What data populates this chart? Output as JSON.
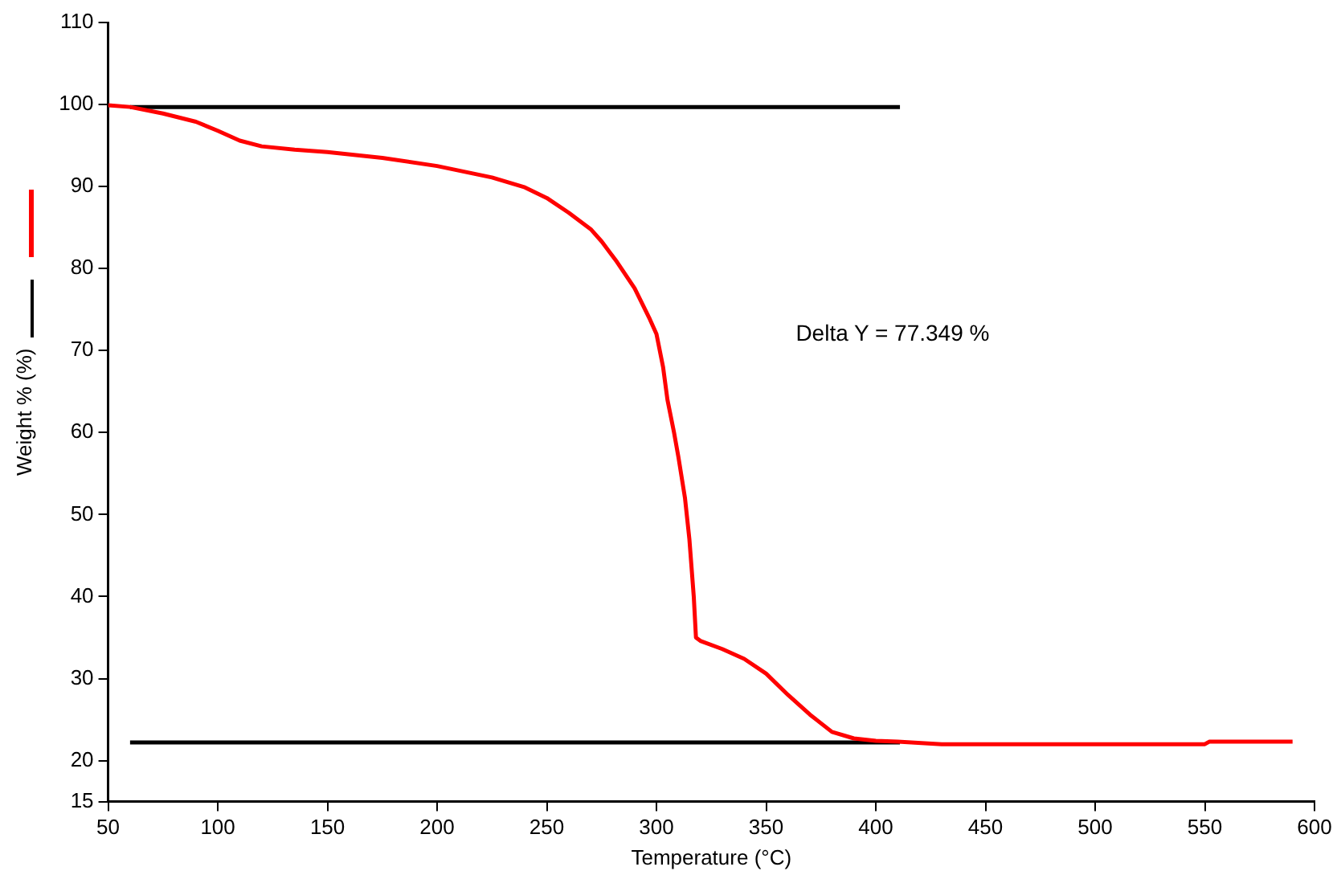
{
  "chart_data": {
    "type": "line",
    "xlabel": "Temperature (°C)",
    "ylabel": "Weight % (%)",
    "annotations": [
      "Delta Y = 77.349 %"
    ],
    "series": [
      {
        "color": "#ff0000",
        "x": [
          50,
          60,
          75,
          90,
          100,
          110,
          120,
          135,
          150,
          175,
          200,
          225,
          240,
          250,
          260,
          270,
          275,
          282,
          290,
          297,
          300,
          303,
          305,
          308,
          310,
          313,
          315,
          317,
          318,
          319,
          320,
          330,
          340,
          350,
          360,
          370,
          380,
          390,
          400,
          410,
          430,
          550,
          552,
          590
        ],
        "values": [
          99.9,
          99.7,
          98.9,
          97.9,
          96.8,
          95.6,
          94.9,
          94.5,
          94.2,
          93.5,
          92.5,
          91.1,
          89.9,
          88.6,
          86.8,
          84.8,
          83.3,
          80.8,
          77.6,
          73.8,
          72,
          68,
          64,
          60,
          57,
          52,
          47,
          40,
          35,
          34.8,
          34.6,
          33.6,
          32.4,
          30.6,
          28,
          25.6,
          23.5,
          22.7,
          22.4,
          22.3,
          22,
          22,
          22.3,
          22.3
        ]
      },
      {
        "color": "#000000",
        "x": [
          60,
          411
        ],
        "values": [
          99.7,
          99.7
        ]
      },
      {
        "color": "#000000",
        "x": [
          60,
          411
        ],
        "values": [
          22.2,
          22.2
        ]
      }
    ],
    "xlim": [
      50,
      600
    ],
    "xticks": [
      50,
      100,
      150,
      200,
      250,
      300,
      350,
      400,
      450,
      500,
      550,
      600
    ],
    "ylim": [
      15,
      110
    ],
    "yticks": [
      15,
      20,
      30,
      40,
      50,
      60,
      70,
      80,
      90,
      100,
      110
    ],
    "grid": false,
    "marker": "none",
    "line_style": "solid"
  }
}
